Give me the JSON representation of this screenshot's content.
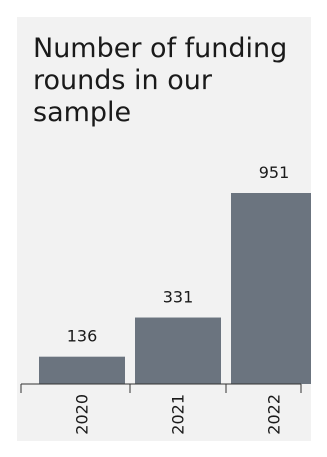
{
  "chart_data": {
    "type": "bar",
    "title": "Number of funding rounds in our sample",
    "xlabel": "",
    "ylabel": "",
    "categories": [
      "2020",
      "2021",
      "2022"
    ],
    "values": [
      136,
      331,
      951
    ],
    "ylim": [
      0,
      951
    ],
    "grid": false,
    "legend": "none",
    "data_labels": true,
    "colors": {
      "bar": "#6b747f",
      "background": "#f2f2f2",
      "axis": "#333333",
      "text": "#1a1a1a"
    }
  }
}
